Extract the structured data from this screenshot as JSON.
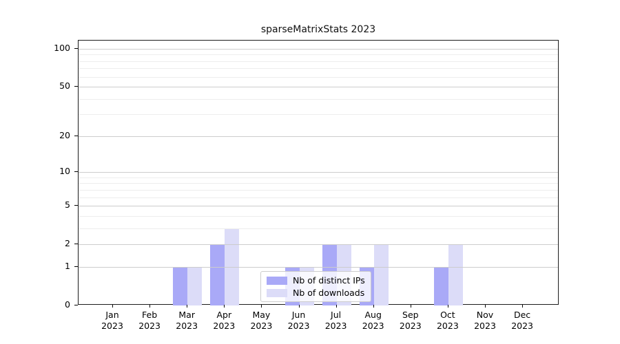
{
  "chart_data": {
    "type": "bar",
    "title": "sparseMatrixStats 2023",
    "categories": [
      "Jan",
      "Feb",
      "Mar",
      "Apr",
      "May",
      "Jun",
      "Jul",
      "Aug",
      "Sep",
      "Oct",
      "Nov",
      "Dec"
    ],
    "x_year_label": "2023",
    "series": [
      {
        "name": "Nb of distinct IPs",
        "color": "#a9a9f7",
        "values": [
          0,
          0,
          1,
          2,
          0,
          1,
          2,
          1,
          0,
          1,
          0,
          0
        ]
      },
      {
        "name": "Nb of downloads",
        "color": "#dcdcf8",
        "values": [
          0,
          0,
          1,
          3,
          0,
          1,
          2,
          2,
          0,
          2,
          0,
          0
        ]
      }
    ],
    "y_axis": {
      "scale": "log1p",
      "max": 116,
      "major_ticks": [
        0,
        1,
        2,
        5,
        10,
        20,
        50,
        100
      ],
      "minor_ticks": [
        3,
        4,
        6,
        7,
        8,
        9,
        30,
        40,
        60,
        70,
        80,
        90
      ]
    },
    "legend": {
      "position": "bottom-center"
    },
    "grid": true
  }
}
